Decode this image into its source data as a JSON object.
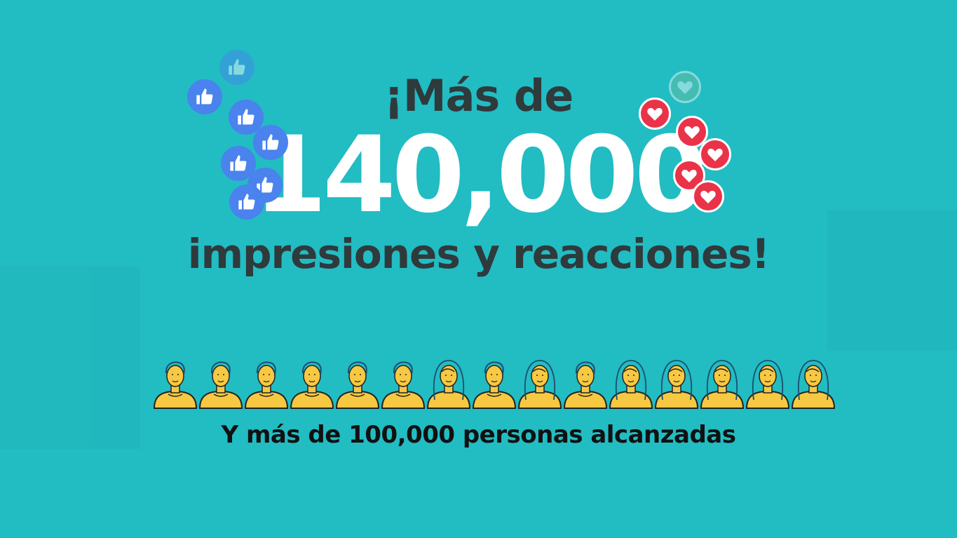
{
  "headline": {
    "line1": "¡Más de",
    "number": "140,000",
    "line3": "impresiones y reacciones!"
  },
  "people": [
    "male",
    "male",
    "male",
    "male",
    "male",
    "male",
    "female",
    "male",
    "female",
    "male",
    "female",
    "female",
    "female",
    "female",
    "female"
  ],
  "subtitle": "Y más de 100,000 personas alcanzadas",
  "icons": {
    "like": "thumbs-up-icon",
    "heart": "heart-icon"
  },
  "colors": {
    "background": "#22bcc3",
    "like": "#4a82ee",
    "heart": "#ea3348",
    "person": "#f7c842",
    "text": "#2f3a3c"
  }
}
